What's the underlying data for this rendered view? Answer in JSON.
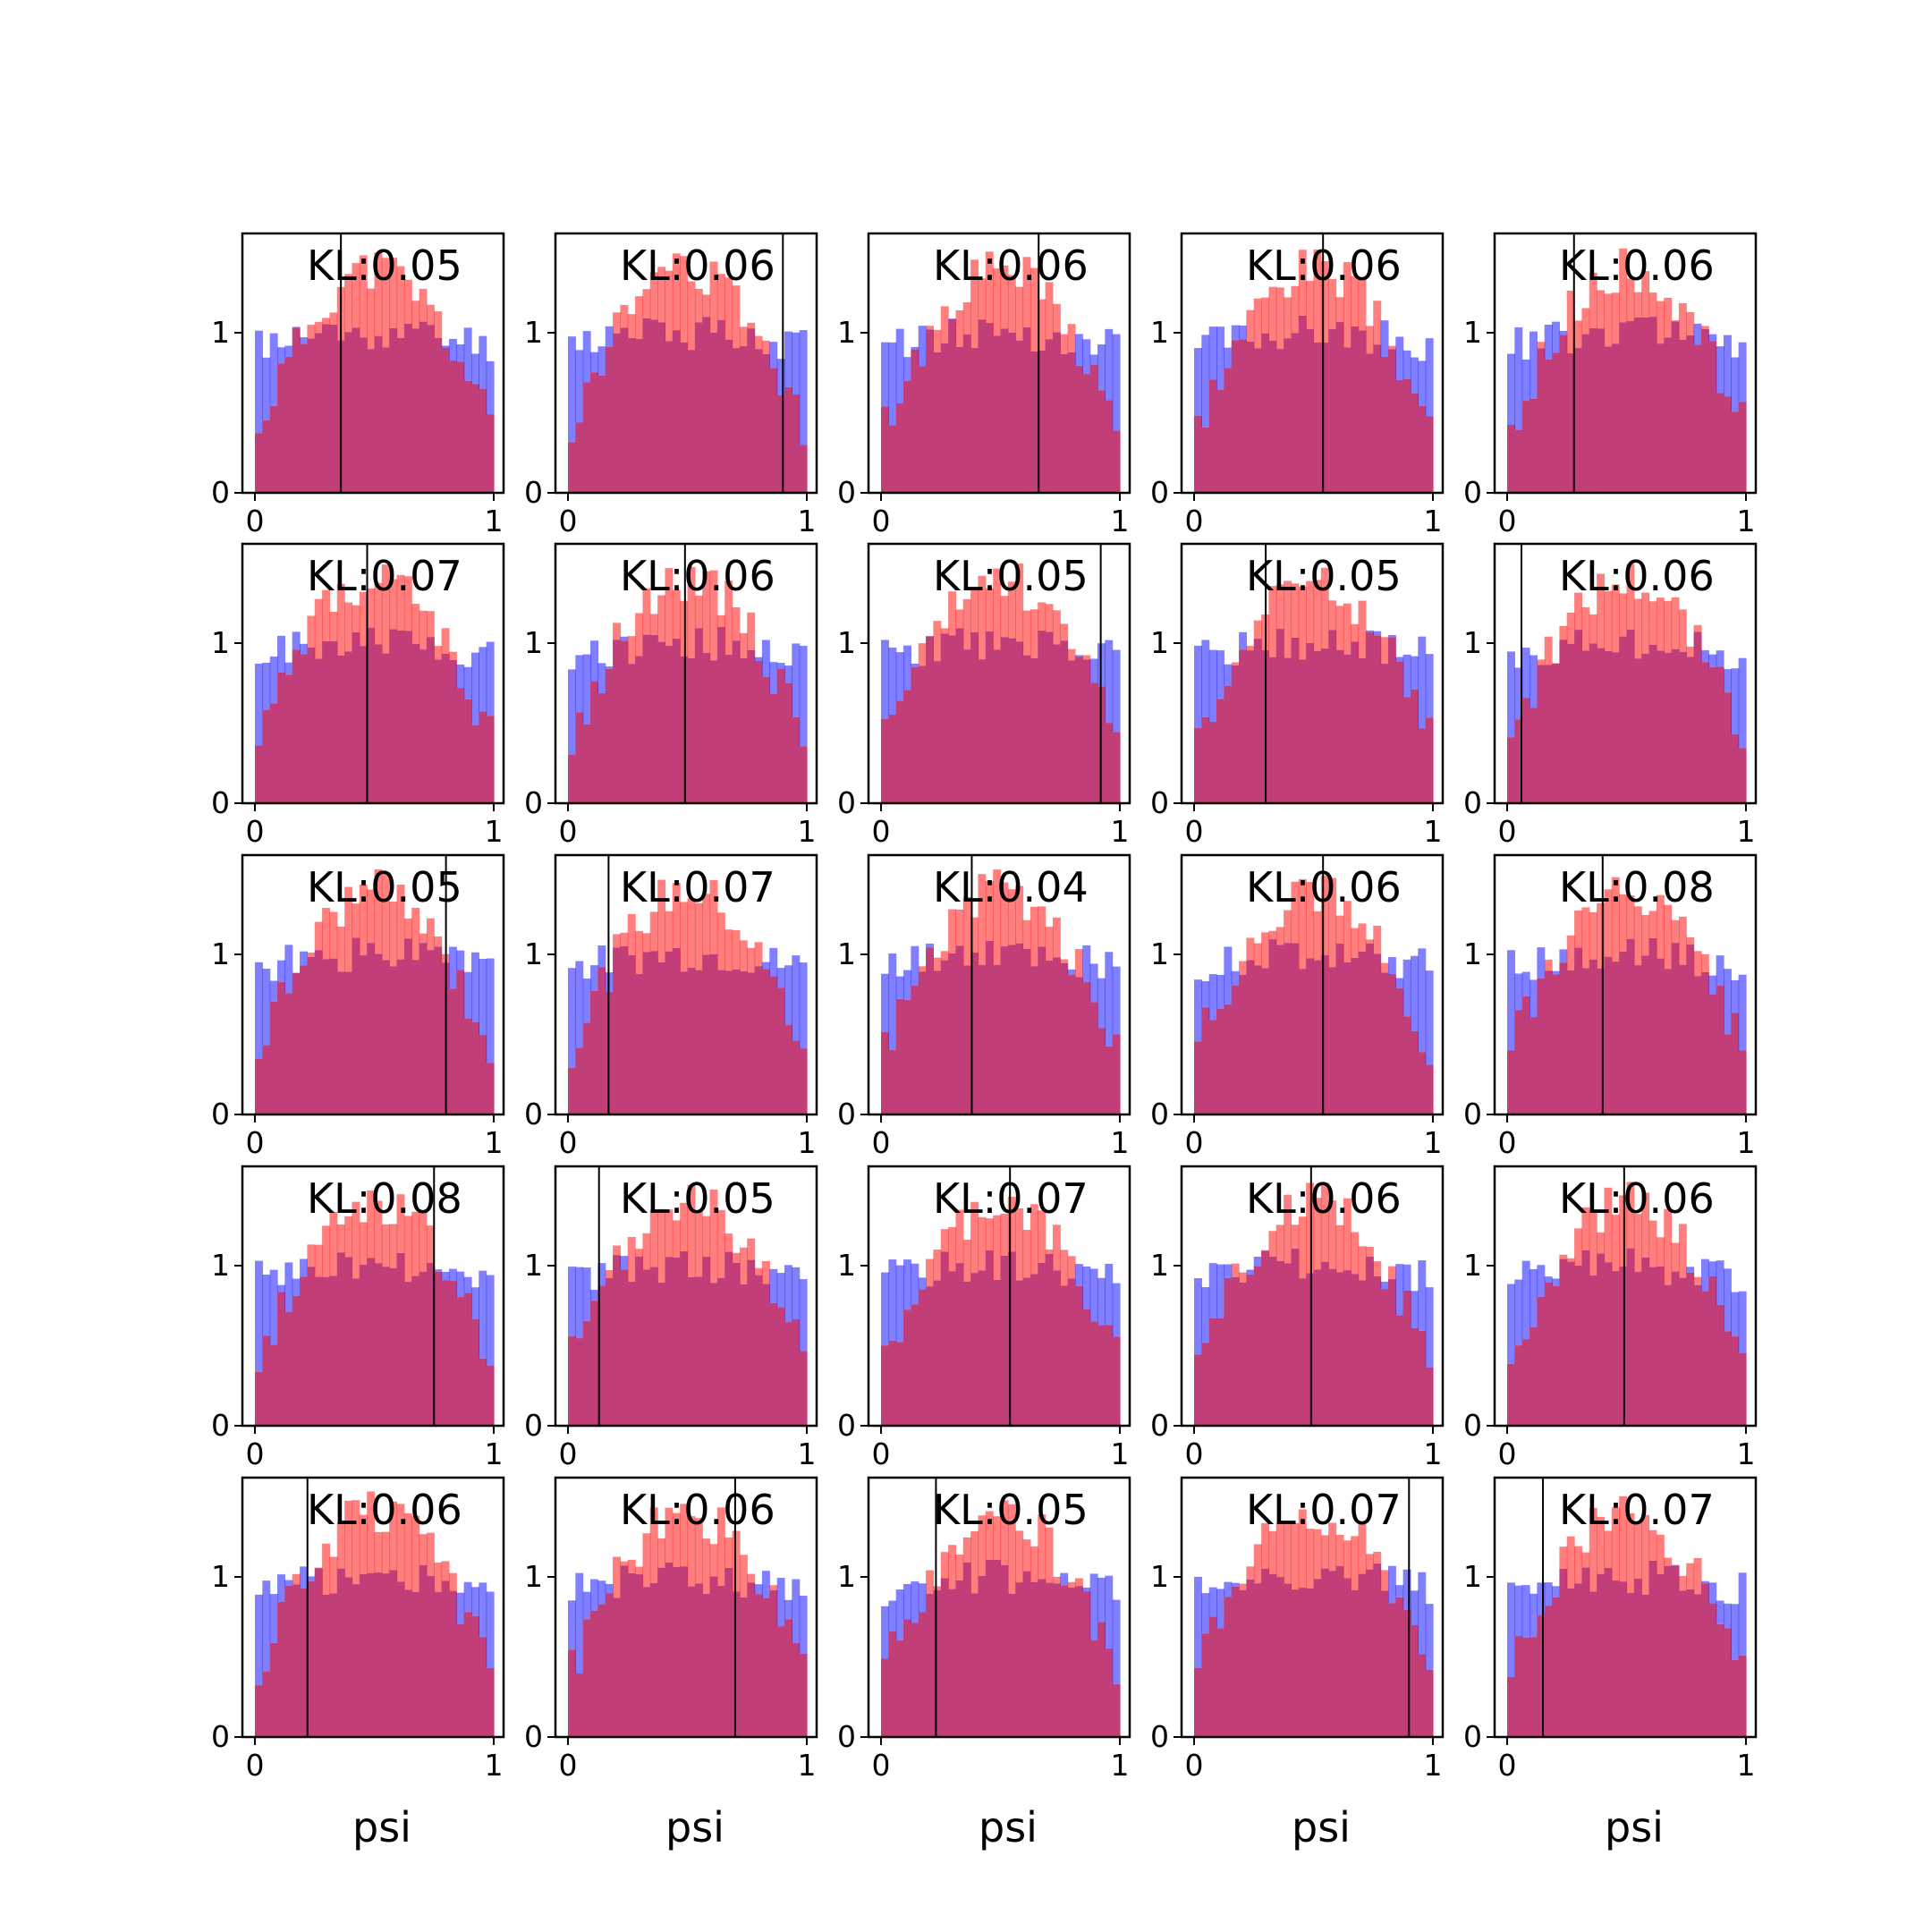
{
  "chart_data": {
    "type": "bar",
    "layout": "grid",
    "rows": 5,
    "cols": 5,
    "bins": 32,
    "x_range": [
      0,
      1
    ],
    "y_range": [
      0,
      1.62
    ],
    "x_ticks": [
      "0",
      "1"
    ],
    "y_ticks": [
      "0",
      "1"
    ],
    "xlabel": "psi",
    "ylabel": "",
    "colors": {
      "prior": "#0000ff",
      "posterior": "#ff0000",
      "overlap": "#c13e78",
      "marker": "#000000"
    },
    "panels": [
      {
        "kl": "KL:0.05",
        "marker_x": 0.36,
        "seed": 11
      },
      {
        "kl": "KL:0.06",
        "marker_x": 0.9,
        "seed": 12
      },
      {
        "kl": "KL:0.06",
        "marker_x": 0.66,
        "seed": 13
      },
      {
        "kl": "KL:0.06",
        "marker_x": 0.54,
        "seed": 14
      },
      {
        "kl": "KL:0.06",
        "marker_x": 0.28,
        "seed": 15
      },
      {
        "kl": "KL:0.07",
        "marker_x": 0.47,
        "seed": 21
      },
      {
        "kl": "KL:0.06",
        "marker_x": 0.49,
        "seed": 22
      },
      {
        "kl": "KL:0.05",
        "marker_x": 0.92,
        "seed": 23
      },
      {
        "kl": "KL:0.05",
        "marker_x": 0.3,
        "seed": 24
      },
      {
        "kl": "KL:0.06",
        "marker_x": 0.06,
        "seed": 25
      },
      {
        "kl": "KL:0.05",
        "marker_x": 0.8,
        "seed": 31
      },
      {
        "kl": "KL:0.07",
        "marker_x": 0.17,
        "seed": 32
      },
      {
        "kl": "KL:0.04",
        "marker_x": 0.38,
        "seed": 33
      },
      {
        "kl": "KL:0.06",
        "marker_x": 0.54,
        "seed": 34
      },
      {
        "kl": "KL:0.08",
        "marker_x": 0.4,
        "seed": 35
      },
      {
        "kl": "KL:0.08",
        "marker_x": 0.75,
        "seed": 41
      },
      {
        "kl": "KL:0.05",
        "marker_x": 0.13,
        "seed": 42
      },
      {
        "kl": "KL:0.07",
        "marker_x": 0.54,
        "seed": 43
      },
      {
        "kl": "KL:0.06",
        "marker_x": 0.49,
        "seed": 44
      },
      {
        "kl": "KL:0.06",
        "marker_x": 0.49,
        "seed": 45
      },
      {
        "kl": "KL:0.06",
        "marker_x": 0.22,
        "seed": 51
      },
      {
        "kl": "KL:0.06",
        "marker_x": 0.7,
        "seed": 52
      },
      {
        "kl": "KL:0.05",
        "marker_x": 0.23,
        "seed": 53
      },
      {
        "kl": "KL:0.07",
        "marker_x": 0.9,
        "seed": 54
      },
      {
        "kl": "KL:0.07",
        "marker_x": 0.15,
        "seed": 55
      }
    ]
  }
}
